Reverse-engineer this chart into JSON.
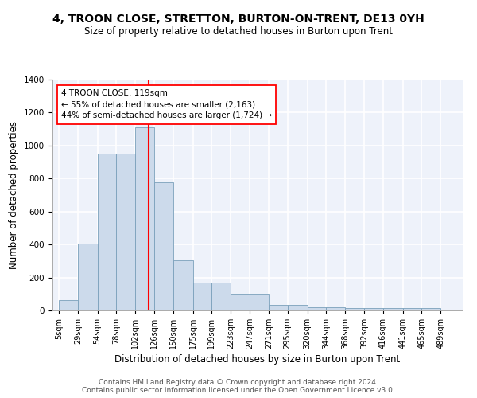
{
  "title": "4, TROON CLOSE, STRETTON, BURTON-ON-TRENT, DE13 0YH",
  "subtitle": "Size of property relative to detached houses in Burton upon Trent",
  "xlabel": "Distribution of detached houses by size in Burton upon Trent",
  "ylabel": "Number of detached properties",
  "footer_line1": "Contains HM Land Registry data © Crown copyright and database right 2024.",
  "footer_line2": "Contains public sector information licensed under the Open Government Licence v3.0.",
  "annotation_title": "4 TROON CLOSE: 119sqm",
  "annotation_line1": "← 55% of detached houses are smaller (2,163)",
  "annotation_line2": "44% of semi-detached houses are larger (1,724) →",
  "bins": [
    5,
    29,
    54,
    78,
    102,
    126,
    150,
    175,
    199,
    223,
    247,
    271,
    295,
    320,
    344,
    368,
    392,
    416,
    441,
    465,
    489
  ],
  "bar_heights": [
    65,
    405,
    950,
    950,
    1110,
    775,
    305,
    170,
    170,
    100,
    100,
    35,
    35,
    20,
    20,
    15,
    15,
    15,
    15,
    15,
    0
  ],
  "bar_color": "#ccdaeb",
  "bar_edge_color": "#7aa0bb",
  "vline_x": 119,
  "vline_color": "red",
  "annotation_box_color": "white",
  "annotation_box_edge_color": "red",
  "ylim": [
    0,
    1400
  ],
  "yticks": [
    0,
    200,
    400,
    600,
    800,
    1000,
    1200,
    1400
  ],
  "background_color": "#eef2fa",
  "grid_color": "white",
  "title_fontsize": 10,
  "subtitle_fontsize": 8.5,
  "xlabel_fontsize": 8.5,
  "ylabel_fontsize": 8.5,
  "tick_fontsize": 7,
  "footer_fontsize": 6.5
}
